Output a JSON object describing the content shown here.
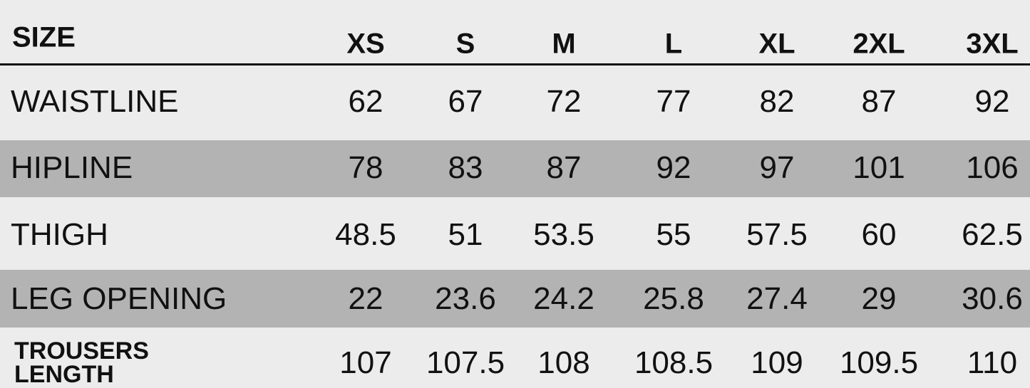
{
  "table": {
    "header": [
      "SIZE",
      "XS",
      "S",
      "M",
      "L",
      "XL",
      "2XL",
      "3XL"
    ],
    "rows": [
      [
        "WAISTLINE",
        62,
        67,
        72,
        77,
        82,
        87,
        92
      ],
      [
        "HIPLINE",
        78,
        83,
        87,
        92,
        97,
        101,
        106
      ],
      [
        "THIGH",
        48.5,
        51,
        53.5,
        55,
        57.5,
        60,
        62.5
      ],
      [
        "LEG OPENING",
        22,
        23.6,
        24.2,
        25.8,
        27.4,
        29,
        30.6
      ],
      [
        "TROUSERS LENGTH",
        107,
        107.5,
        108,
        108.5,
        109,
        109.5,
        110
      ]
    ]
  }
}
